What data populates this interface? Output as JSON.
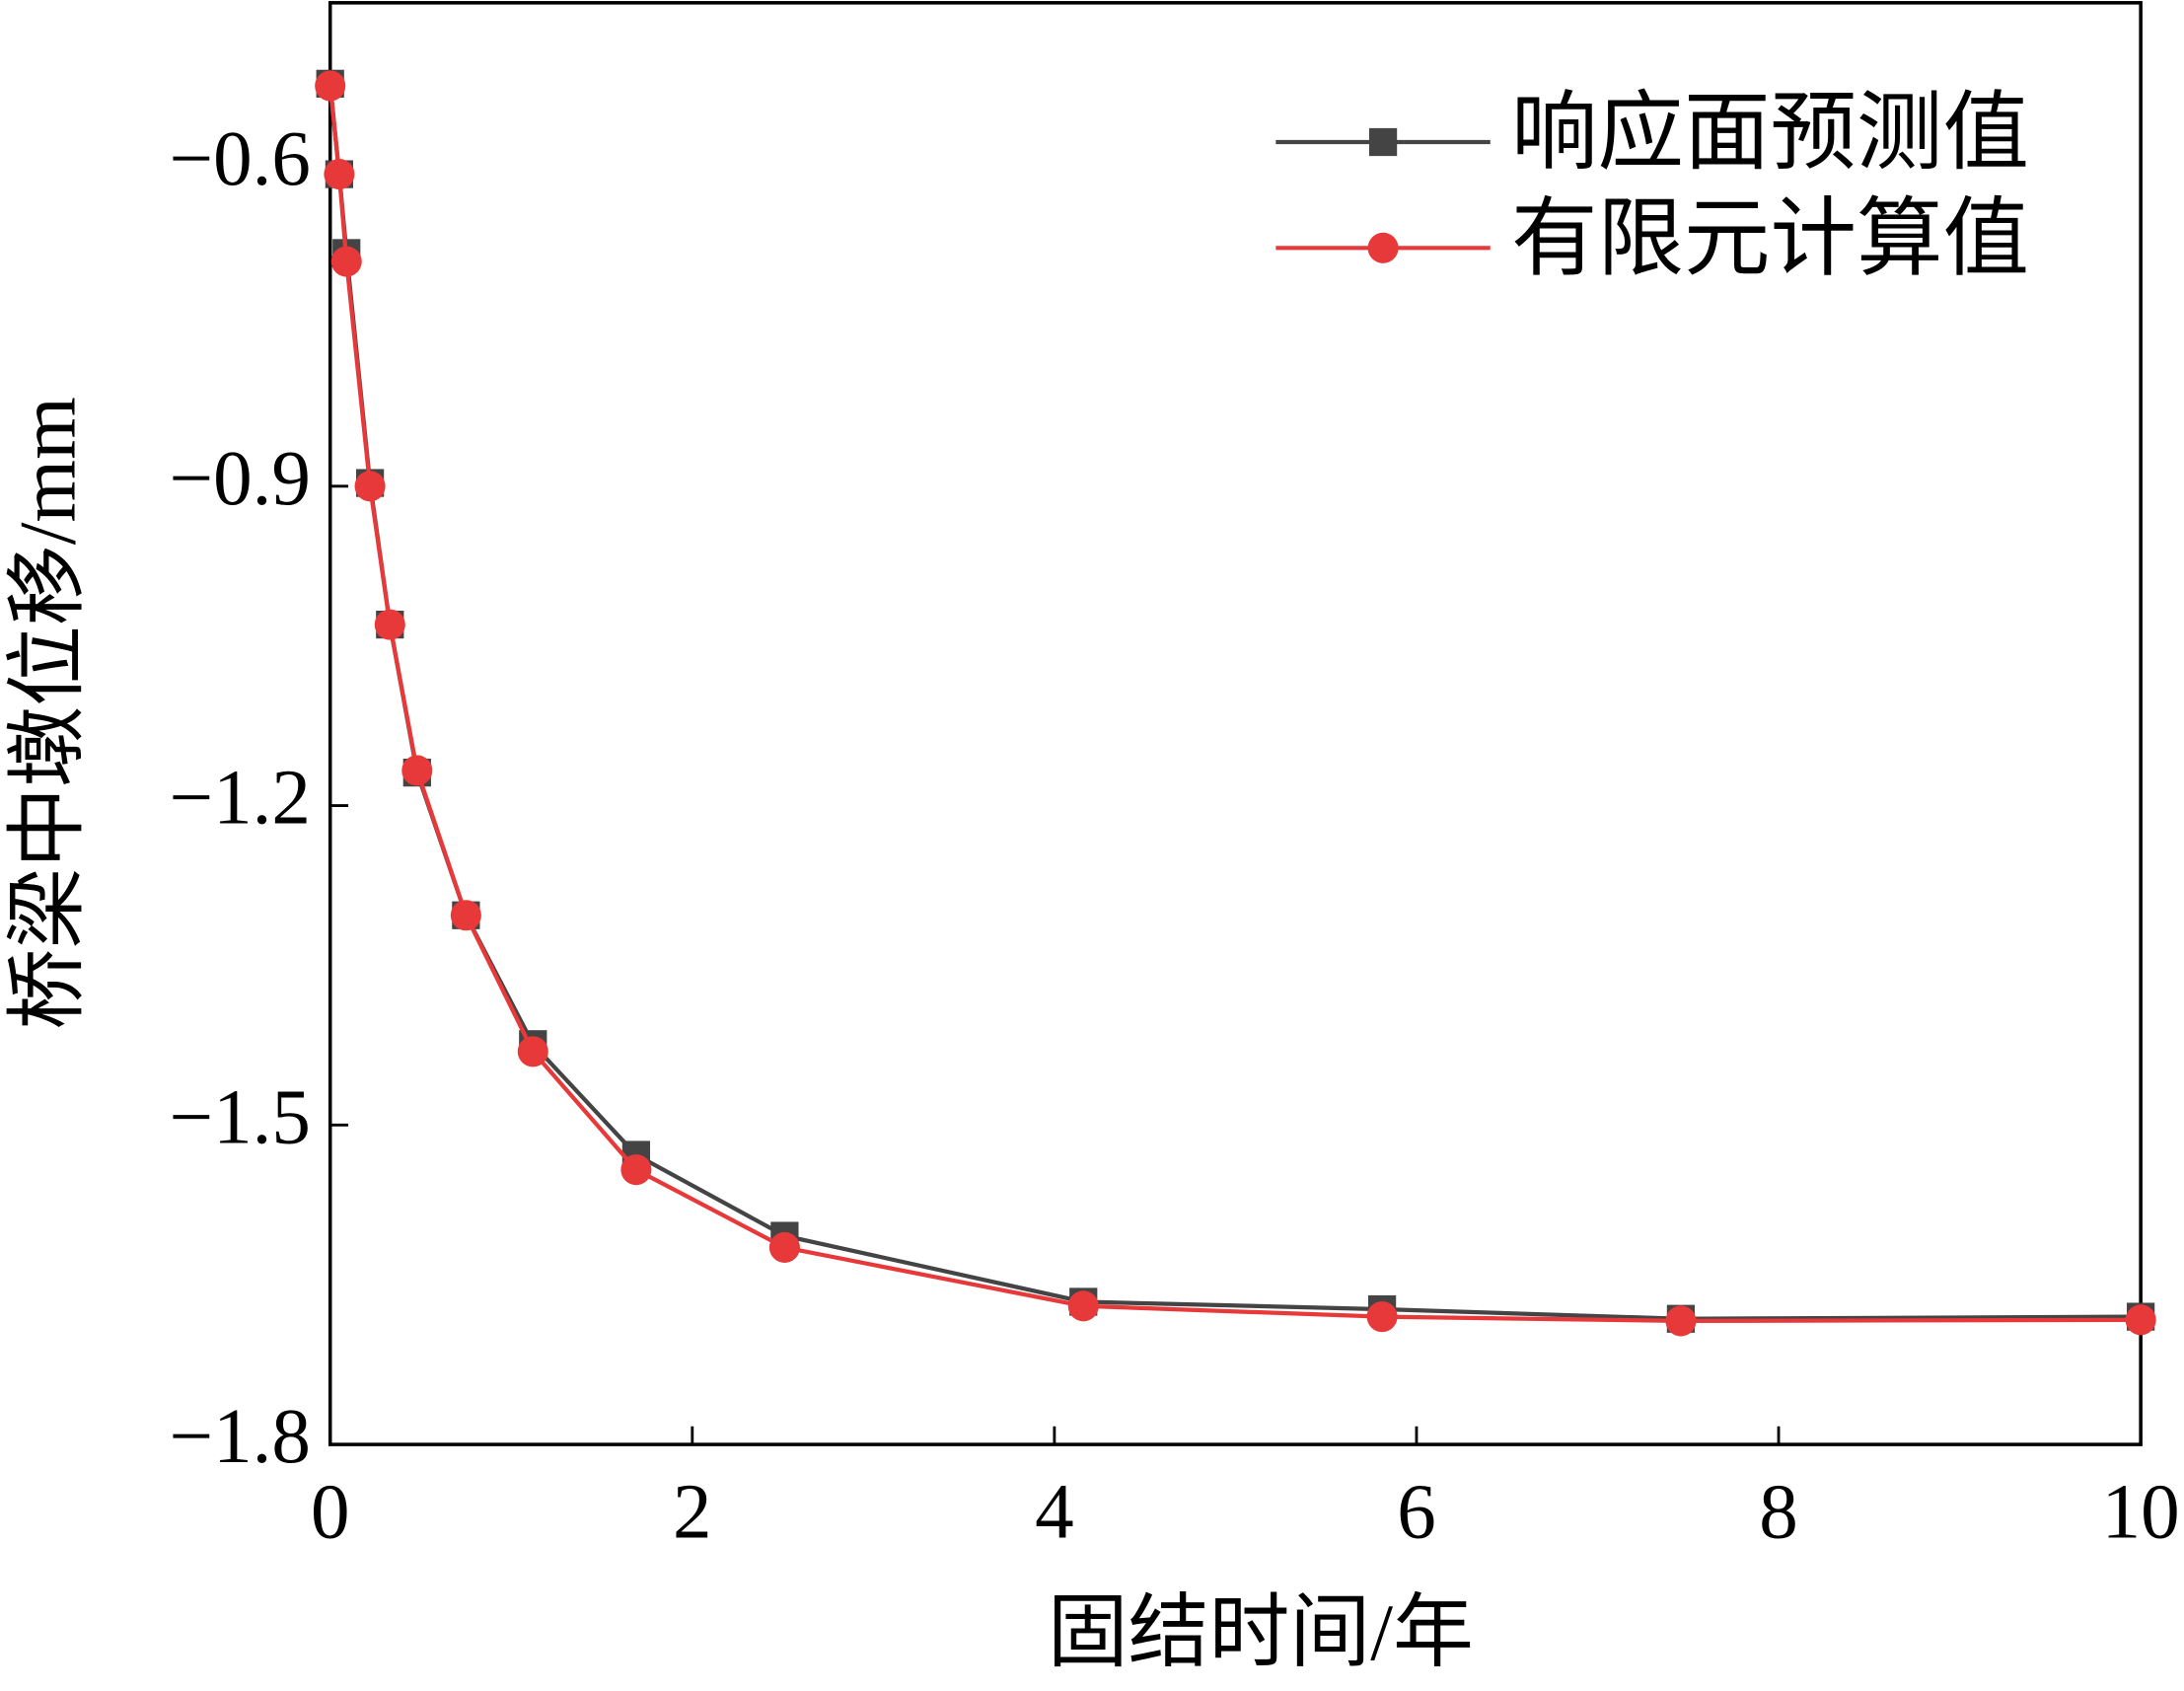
{
  "chart_data": {
    "type": "line",
    "x_label": "固结时间/年",
    "y_label": "桥梁中墩位移/mm",
    "x": [
      0,
      0.05,
      0.09,
      0.22,
      0.33,
      0.48,
      0.75,
      1.12,
      1.69,
      2.51,
      4.16,
      5.81,
      7.46,
      10
    ],
    "series": [
      {
        "name": "响应面预测值",
        "color": "#444444",
        "marker": "square",
        "values": [
          -0.522,
          -0.607,
          -0.681,
          -0.897,
          -1.03,
          -1.169,
          -1.303,
          -1.424,
          -1.528,
          -1.604,
          -1.666,
          -1.673,
          -1.682,
          -1.68
        ]
      },
      {
        "name": "有限元计算值",
        "color": "#e8393a",
        "marker": "circle",
        "values": [
          -0.524,
          -0.607,
          -0.689,
          -0.9,
          -1.03,
          -1.167,
          -1.303,
          -1.431,
          -1.542,
          -1.615,
          -1.67,
          -1.68,
          -1.684,
          -1.683
        ]
      }
    ],
    "xlim": [
      0,
      10
    ],
    "xticks": [
      0,
      2,
      4,
      6,
      8,
      10
    ],
    "ylim": [
      -1.8,
      -0.446
    ],
    "yticks": [
      {
        "value": -0.6,
        "label": "−0.6"
      },
      {
        "value": -0.9,
        "label": "−0.9"
      },
      {
        "value": -1.2,
        "label": "−1.2"
      },
      {
        "value": -1.5,
        "label": "−1.5"
      },
      {
        "value": -1.8,
        "label": "−1.8"
      }
    ],
    "legend": "upper-right"
  }
}
